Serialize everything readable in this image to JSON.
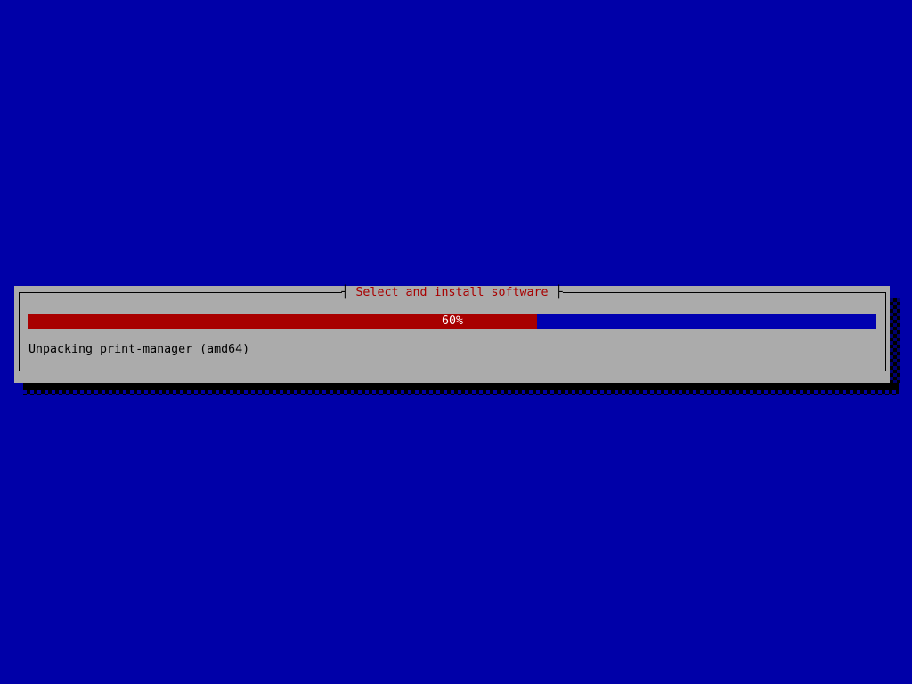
{
  "desktop": {
    "background_color": "#0000A8"
  },
  "dialog": {
    "title": "Select and install software",
    "title_tee_left": "┤",
    "title_tee_right": "├",
    "background_color": "#ABABAB",
    "title_color": "#A80000",
    "border_color": "#000000",
    "progress": {
      "percent": 60,
      "label": "60%",
      "fill_color": "#A80000",
      "track_color": "#0000B0",
      "label_color": "#FFFFFF"
    },
    "status_text": "Unpacking print-manager (amd64)"
  }
}
